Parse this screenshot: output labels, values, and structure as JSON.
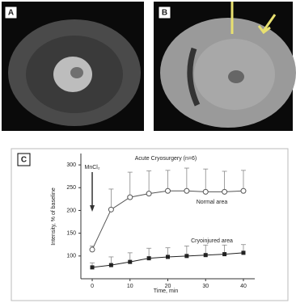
{
  "panel_labels": [
    "A",
    "B"
  ],
  "chart_data": {
    "type": "line",
    "panel_label": "C",
    "title": "Acute Cryosurgery (n=6)",
    "annotation": "MnCl₂",
    "xlabel": "Time, min",
    "ylabel": "Intensity, % of baseline",
    "x": [
      0,
      5,
      10,
      15,
      20,
      25,
      30,
      35,
      40
    ],
    "series": [
      {
        "name": "Normal area",
        "color": "#555555",
        "marker": "open-circle",
        "values": [
          114,
          202,
          229,
          237,
          243,
          243,
          241,
          241,
          243
        ],
        "errors": [
          8,
          45,
          55,
          50,
          45,
          50,
          50,
          45,
          45
        ]
      },
      {
        "name": "Cryoinjured area",
        "color": "#222222",
        "marker": "filled-square",
        "values": [
          75,
          80,
          87,
          95,
          98,
          100,
          102,
          104,
          107
        ],
        "errors": [
          10,
          18,
          20,
          22,
          20,
          22,
          22,
          20,
          18
        ]
      }
    ],
    "xlim": [
      -3,
      43
    ],
    "ylim": [
      50,
      325
    ],
    "xticks": [
      0,
      10,
      20,
      30,
      40
    ],
    "yticks": [
      100,
      150,
      200,
      250,
      300
    ]
  }
}
